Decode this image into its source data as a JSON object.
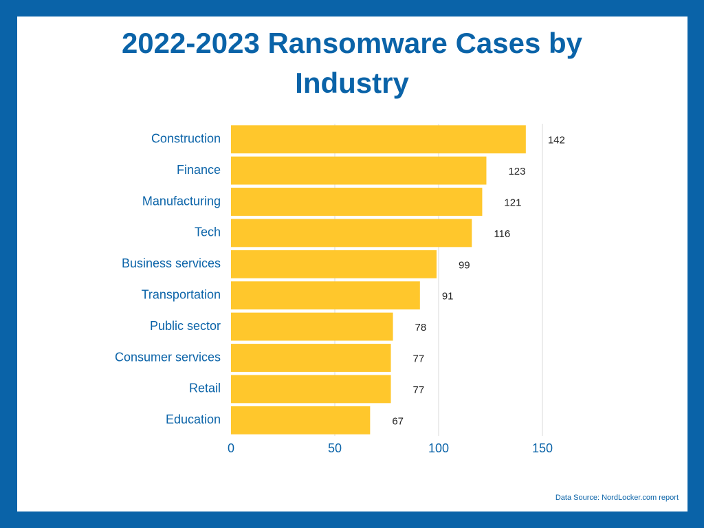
{
  "chart_data": {
    "type": "bar",
    "orientation": "horizontal",
    "title": "2022-2023 Ransomware Cases by Industry",
    "categories": [
      "Construction",
      "Finance",
      "Manufacturing",
      "Tech",
      "Business services",
      "Transportation",
      "Public sector",
      "Consumer services",
      "Retail",
      "Education"
    ],
    "values": [
      142,
      123,
      121,
      116,
      99,
      91,
      78,
      77,
      77,
      67
    ],
    "color": "#ffc72c",
    "xlim": [
      0,
      150
    ],
    "xticks": [
      0,
      50,
      100,
      150
    ],
    "grid": true,
    "source": "Data Source: NordLocker.com report"
  }
}
